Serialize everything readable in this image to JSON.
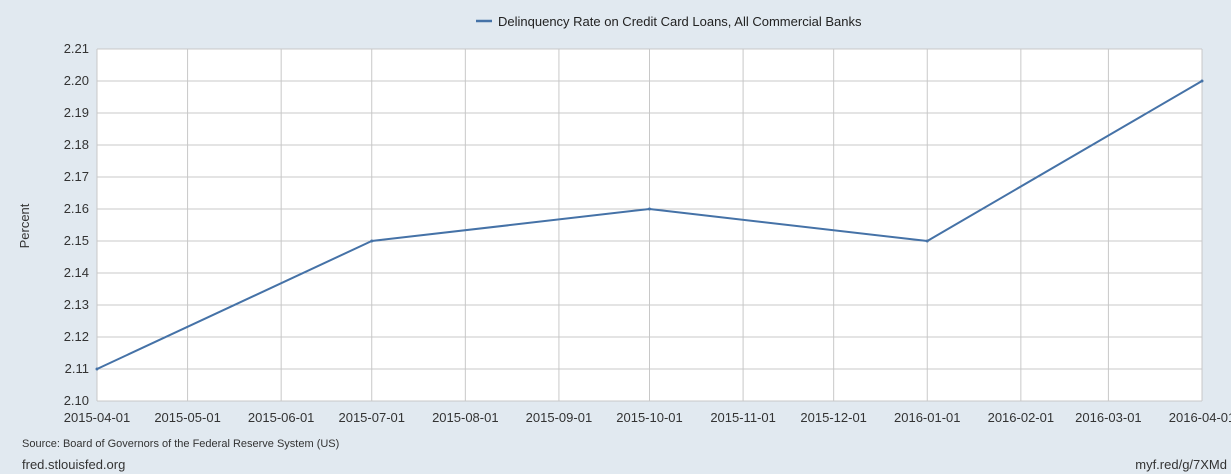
{
  "chart_data": {
    "type": "line",
    "title": "",
    "xlabel": "",
    "ylabel": "Percent",
    "ylim": [
      2.1,
      2.21
    ],
    "yticks": [
      2.1,
      2.11,
      2.12,
      2.13,
      2.14,
      2.15,
      2.16,
      2.17,
      2.18,
      2.19,
      2.2,
      2.21
    ],
    "xticks": [
      "2015-04-01",
      "2015-05-01",
      "2015-06-01",
      "2015-07-01",
      "2015-08-01",
      "2015-09-01",
      "2015-10-01",
      "2015-11-01",
      "2015-12-01",
      "2016-01-01",
      "2016-02-01",
      "2016-03-01",
      "2016-04-01"
    ],
    "grid": true,
    "legend_position": "top-center",
    "series": [
      {
        "name": "Delinquency Rate on Credit Card Loans, All Commercial Banks",
        "color": "#4572a7",
        "x": [
          "2015-04-01",
          "2015-07-01",
          "2015-10-01",
          "2016-01-01",
          "2016-04-01"
        ],
        "values": [
          2.11,
          2.15,
          2.16,
          2.15,
          2.2
        ]
      }
    ]
  },
  "source_text": "Source: Board of Governors of the Federal Reserve System (US)",
  "footer": {
    "left": "fred.stlouisfed.org",
    "right": "myf.red/g/7XMd"
  },
  "colors": {
    "background": "#e1e9f0",
    "plot_background": "#ffffff",
    "grid": "#c8c8c8"
  }
}
